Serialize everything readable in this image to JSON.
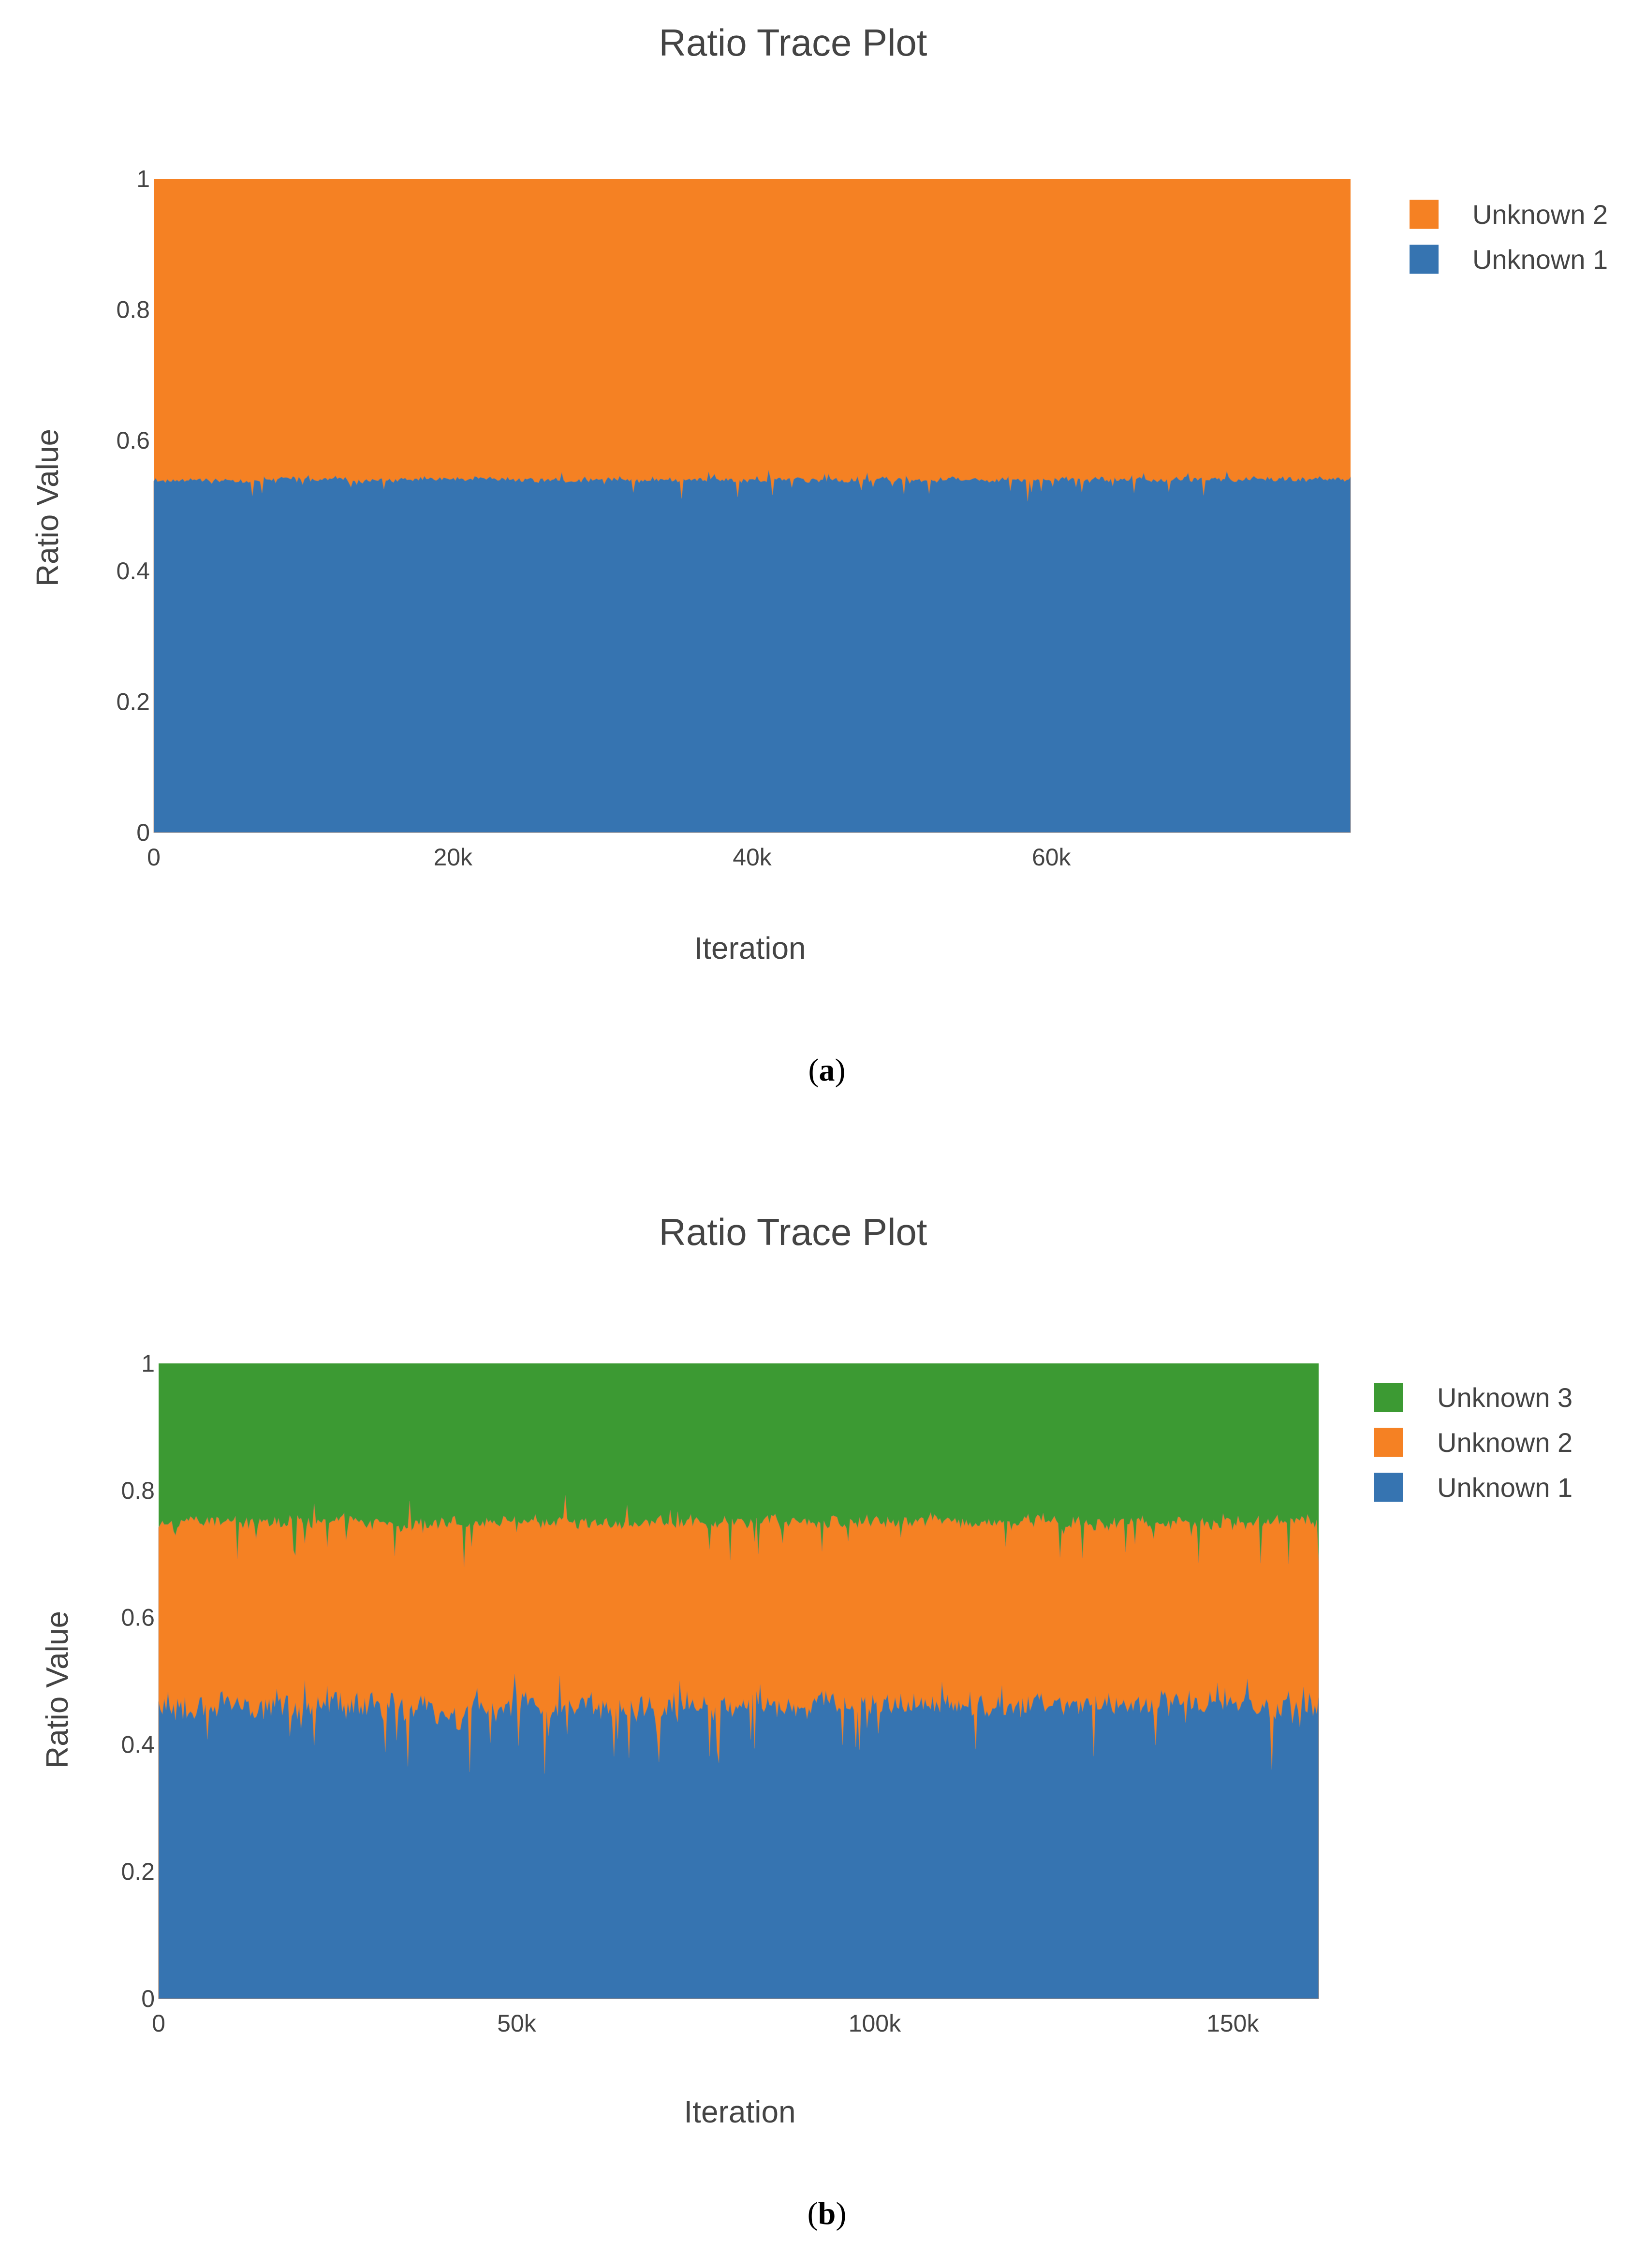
{
  "chart_data": [
    {
      "type": "area",
      "stacked": true,
      "title": "Ratio Trace Plot",
      "xlabel": "Iteration",
      "ylabel": "Ratio Value",
      "xlim": [
        0,
        80000
      ],
      "ylim": [
        0,
        1
      ],
      "x_ticks": [
        {
          "value": 0,
          "label": "0"
        },
        {
          "value": 20000,
          "label": "20k"
        },
        {
          "value": 40000,
          "label": "40k"
        },
        {
          "value": 60000,
          "label": "60k"
        }
      ],
      "y_ticks": [
        {
          "value": 0,
          "label": "0"
        },
        {
          "value": 0.2,
          "label": "0.2"
        },
        {
          "value": 0.4,
          "label": "0.4"
        },
        {
          "value": 0.6,
          "label": "0.6"
        },
        {
          "value": 0.8,
          "label": "0.8"
        },
        {
          "value": 1,
          "label": "1"
        }
      ],
      "grid": false,
      "legend_position": "top-right",
      "series": [
        {
          "name": "Unknown 1",
          "color": "#3674b1",
          "mean": 0.54,
          "min": 0.5,
          "max": 0.56
        },
        {
          "name": "Unknown 2",
          "color": "#f58123",
          "mean": 0.46,
          "cumulative_top": 1.0
        }
      ],
      "legend_order": [
        "Unknown 2",
        "Unknown 1"
      ],
      "caption_letter": "a"
    },
    {
      "type": "area",
      "stacked": true,
      "title": "Ratio Trace Plot",
      "xlabel": "Iteration",
      "ylabel": "Ratio Value",
      "xlim": [
        0,
        162000
      ],
      "ylim": [
        0,
        1
      ],
      "x_ticks": [
        {
          "value": 0,
          "label": "0"
        },
        {
          "value": 50000,
          "label": "50k"
        },
        {
          "value": 100000,
          "label": "100k"
        },
        {
          "value": 150000,
          "label": "150k"
        }
      ],
      "y_ticks": [
        {
          "value": 0,
          "label": "0"
        },
        {
          "value": 0.2,
          "label": "0.2"
        },
        {
          "value": 0.4,
          "label": "0.4"
        },
        {
          "value": 0.6,
          "label": "0.6"
        },
        {
          "value": 0.8,
          "label": "0.8"
        },
        {
          "value": 1,
          "label": "1"
        }
      ],
      "grid": false,
      "legend_position": "top-right",
      "series": [
        {
          "name": "Unknown 1",
          "color": "#3674b1",
          "mean": 0.46,
          "min": 0.33,
          "max": 0.55
        },
        {
          "name": "Unknown 2",
          "color": "#f58123",
          "mean": 0.29,
          "cumulative_mean": 0.75,
          "cumulative_min": 0.67,
          "cumulative_max": 0.82
        },
        {
          "name": "Unknown 3",
          "color": "#3c9a33",
          "mean": 0.25,
          "cumulative_top": 1.0
        }
      ],
      "legend_order": [
        "Unknown 3",
        "Unknown 2",
        "Unknown 1"
      ],
      "caption_letter": "b"
    }
  ],
  "captions": [
    {
      "open": "(",
      "letter": "a",
      "close": ")"
    },
    {
      "open": "(",
      "letter": "b",
      "close": ")"
    }
  ]
}
